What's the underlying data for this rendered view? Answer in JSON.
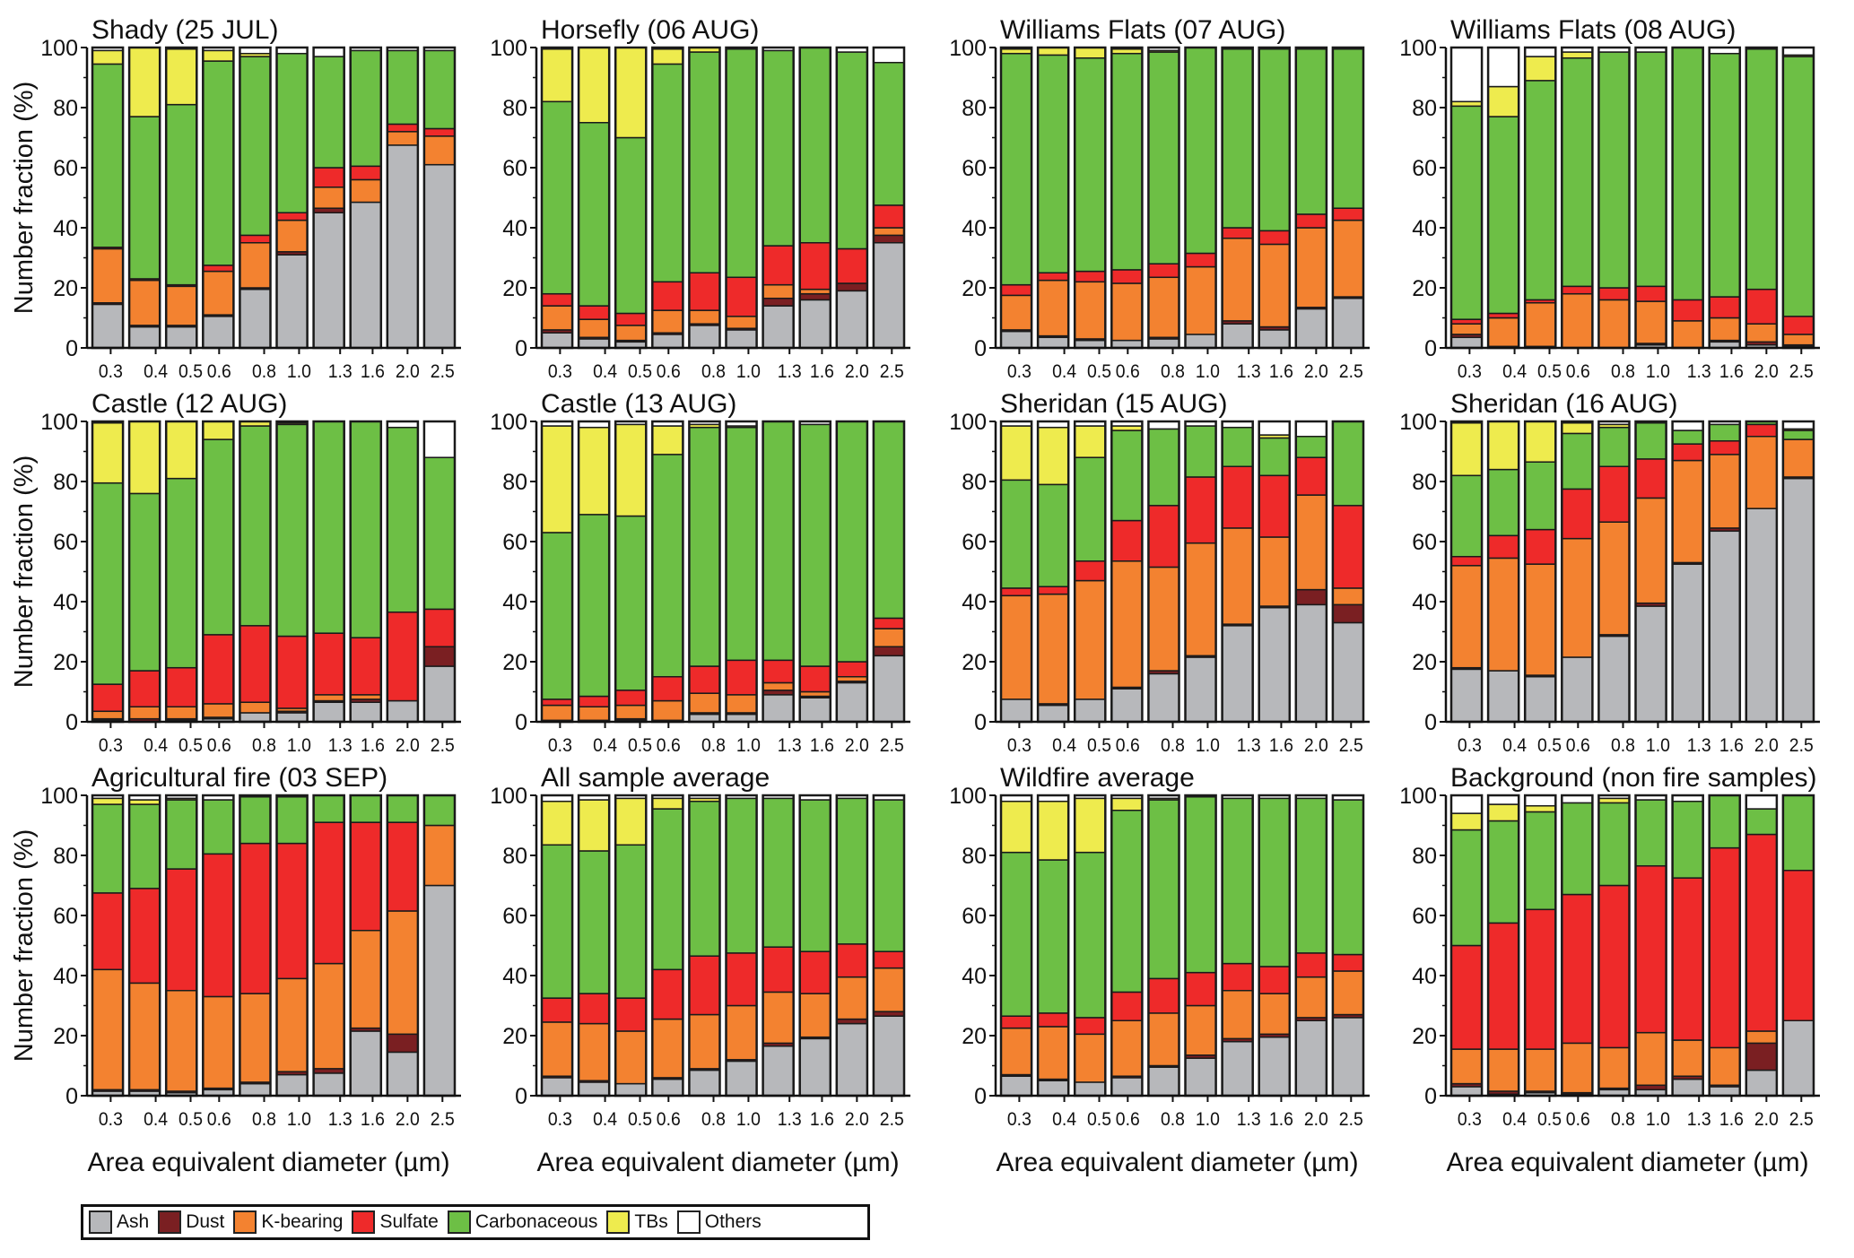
{
  "chart_data": {
    "type": "bar",
    "stacked": true,
    "normalized_percent": true,
    "ylabel": "Number fraction (%)",
    "xlabel": "Area equivalent diameter (µm)",
    "ylim": [
      0,
      100
    ],
    "yticks": [
      0,
      20,
      40,
      60,
      80,
      100
    ],
    "categories": [
      "0.3",
      "0.4",
      "0.5",
      "0.6",
      "0.8",
      "1.0",
      "1.3",
      "1.6",
      "2.0",
      "2.5"
    ],
    "x_tick_scale": "log",
    "legend_position": "bottom-left",
    "legend": [
      {
        "name": "Ash",
        "color": "#b7b8bb"
      },
      {
        "name": "Dust",
        "color": "#7a1f22"
      },
      {
        "name": "K-bearing",
        "color": "#f38230"
      },
      {
        "name": "Sulfate",
        "color": "#ee2a2a"
      },
      {
        "name": "Carbonaceous",
        "color": "#6dbf45"
      },
      {
        "name": "TBs",
        "color": "#eeeb4e"
      },
      {
        "name": "Others",
        "color": "#ffffff"
      }
    ],
    "panels": [
      {
        "title": "Shady  (25 JUL)",
        "bars": [
          [
            14.5,
            0.5,
            18,
            0.5,
            61,
            4.5,
            1
          ],
          [
            7,
            0.5,
            15,
            0.5,
            54,
            23,
            0
          ],
          [
            7,
            0.5,
            13,
            0.5,
            60,
            18.5,
            0.5
          ],
          [
            10.5,
            0.5,
            14.5,
            2,
            68,
            3.5,
            1
          ],
          [
            19.5,
            0.5,
            15,
            2.5,
            59.5,
            1,
            2
          ],
          [
            31,
            1,
            10.5,
            2.5,
            53,
            0,
            2
          ],
          [
            45,
            1.5,
            7,
            6.5,
            37,
            0,
            3
          ],
          [
            48.5,
            0,
            7.5,
            4.5,
            38.5,
            0,
            1
          ],
          [
            67.5,
            0,
            4.5,
            2.5,
            24.5,
            0,
            1
          ],
          [
            61,
            0,
            9.5,
            2.5,
            26,
            0,
            1
          ]
        ]
      },
      {
        "title": "Horsefly  (06 AUG)",
        "bars": [
          [
            5,
            1,
            8,
            4,
            64,
            17.5,
            0.5
          ],
          [
            3,
            0.5,
            6,
            4.5,
            61,
            25,
            0
          ],
          [
            2,
            0.5,
            5,
            4,
            58.5,
            30,
            0
          ],
          [
            4.5,
            0.5,
            7.5,
            9.5,
            72.5,
            5,
            0.5
          ],
          [
            7.5,
            0.5,
            4.5,
            12.5,
            73.5,
            1.5,
            0
          ],
          [
            6,
            0.5,
            4,
            13,
            76,
            0,
            0.5
          ],
          [
            14,
            2.5,
            4.5,
            13,
            65,
            0,
            1
          ],
          [
            16,
            2,
            1.5,
            15.5,
            65,
            0,
            0
          ],
          [
            19,
            2.5,
            0,
            11.5,
            65.5,
            0,
            1.5
          ],
          [
            35,
            2.5,
            2.5,
            7.5,
            47.5,
            0,
            5
          ]
        ]
      },
      {
        "title": "Williams Flats  (07 AUG)",
        "bars": [
          [
            5.5,
            0.5,
            11.5,
            3.5,
            77,
            1.5,
            0.5
          ],
          [
            3.5,
            0.5,
            18.5,
            2.5,
            72.5,
            2.5,
            0
          ],
          [
            2.5,
            0.5,
            19,
            3.5,
            71,
            3.5,
            0
          ],
          [
            2.5,
            0,
            19,
            4.5,
            72,
            1.5,
            0.5
          ],
          [
            3,
            0.5,
            20,
            4.5,
            70.5,
            0.5,
            1
          ],
          [
            4.5,
            0,
            22.5,
            4.5,
            68.5,
            0,
            0
          ],
          [
            8,
            1,
            27.5,
            3.5,
            59.5,
            0,
            0.5
          ],
          [
            6,
            1,
            27.5,
            4.5,
            60.5,
            0,
            0.5
          ],
          [
            13,
            0.5,
            26.5,
            4.5,
            55,
            0,
            0.5
          ],
          [
            16.5,
            0.5,
            25.5,
            4,
            53,
            0,
            0.5
          ]
        ]
      },
      {
        "title": "Williams Flats (08 AUG)",
        "bars": [
          [
            3.5,
            1,
            3.5,
            1.5,
            71,
            1.5,
            18
          ],
          [
            0.5,
            0,
            9.5,
            1.5,
            65.5,
            10,
            13
          ],
          [
            0.5,
            0,
            14.5,
            1,
            73,
            8,
            3
          ],
          [
            0,
            0,
            18,
            2.5,
            76,
            2,
            1.5
          ],
          [
            0,
            0,
            16,
            4,
            78.5,
            0,
            1.5
          ],
          [
            1,
            0.5,
            14,
            5,
            78,
            0,
            1.5
          ],
          [
            0,
            0,
            9,
            7,
            84,
            0,
            0
          ],
          [
            2,
            0.5,
            7.5,
            7,
            81,
            0,
            2
          ],
          [
            1,
            1,
            6,
            11.5,
            80,
            0,
            0.5
          ],
          [
            0.5,
            0.5,
            3.5,
            6,
            86.5,
            0.5,
            2.5
          ]
        ]
      },
      {
        "title": "Castle  (12 AUG)",
        "bars": [
          [
            0.5,
            0.5,
            2.5,
            9,
            67,
            20,
            0.5
          ],
          [
            0,
            1,
            4,
            12,
            59,
            24,
            0
          ],
          [
            0.5,
            0.5,
            4,
            13,
            63,
            19,
            0
          ],
          [
            1,
            0.5,
            4.5,
            23,
            65,
            6,
            0
          ],
          [
            3,
            0,
            3.5,
            25.5,
            66.5,
            1.5,
            0
          ],
          [
            3,
            0.5,
            1,
            24,
            70.5,
            0.5,
            0.5
          ],
          [
            6.5,
            0.5,
            2,
            20.5,
            70.5,
            0,
            0
          ],
          [
            6.5,
            1,
            1.5,
            19,
            72,
            0,
            0
          ],
          [
            7,
            0,
            0,
            29.5,
            61.5,
            0,
            2
          ],
          [
            18.5,
            6.5,
            0,
            12.5,
            50.5,
            0,
            12
          ]
        ]
      },
      {
        "title": "Castle  (13 AUG)",
        "bars": [
          [
            0,
            0.5,
            5,
            2,
            55.5,
            35.5,
            1.5
          ],
          [
            0,
            0.5,
            4.5,
            3.5,
            60.5,
            29,
            2
          ],
          [
            0.5,
            0.5,
            4.5,
            5,
            58,
            30.5,
            1
          ],
          [
            0.5,
            0,
            6.5,
            8,
            74,
            9.5,
            1.5
          ],
          [
            2.5,
            0.5,
            6.5,
            9,
            79.5,
            1,
            1
          ],
          [
            2.5,
            0.5,
            6,
            11.5,
            77.5,
            0.5,
            1.5
          ],
          [
            9,
            1.5,
            2.5,
            7.5,
            79.5,
            0,
            0
          ],
          [
            8,
            0.5,
            1.5,
            8.5,
            80.5,
            0,
            1
          ],
          [
            13,
            0.5,
            1.5,
            5,
            80,
            0,
            0
          ],
          [
            22,
            3,
            6,
            3.5,
            65.5,
            0,
            0
          ]
        ]
      },
      {
        "title": "Sheridan  (15 AUG)",
        "bars": [
          [
            7.5,
            0,
            34.5,
            2.5,
            36,
            18,
            1.5
          ],
          [
            5.5,
            0.5,
            36.5,
            2.5,
            34,
            19,
            2
          ],
          [
            7.5,
            0,
            39.5,
            6.5,
            34.5,
            10.5,
            1.5
          ],
          [
            11,
            0.5,
            42,
            13.5,
            30,
            1.5,
            1.5
          ],
          [
            16,
            1,
            34.5,
            20.5,
            25.5,
            0,
            2.5
          ],
          [
            21.5,
            0.5,
            37.5,
            22,
            17,
            0,
            1.5
          ],
          [
            32,
            0.5,
            32,
            20.5,
            13,
            0,
            2
          ],
          [
            38,
            0.5,
            23,
            20.5,
            12.5,
            1,
            4.5
          ],
          [
            39,
            5,
            31.5,
            12.5,
            7,
            0,
            5
          ],
          [
            33,
            6,
            5.5,
            27.5,
            28,
            0,
            0
          ]
        ]
      },
      {
        "title": "Sheridan  (16 AUG)",
        "bars": [
          [
            17.5,
            0.5,
            34,
            3,
            27,
            17.5,
            0.5
          ],
          [
            17,
            0,
            37.5,
            7.5,
            22,
            16,
            0
          ],
          [
            15,
            0.5,
            37,
            11.5,
            22.5,
            13.5,
            0
          ],
          [
            21.5,
            0,
            39.5,
            16.5,
            18.5,
            3.5,
            0.5
          ],
          [
            28.5,
            0.5,
            37.5,
            18.5,
            13,
            1,
            1
          ],
          [
            38.5,
            1,
            35,
            13,
            12,
            0,
            0.5
          ],
          [
            52.5,
            0.5,
            34,
            5.5,
            4.5,
            0,
            3
          ],
          [
            63.5,
            1,
            24.5,
            4.5,
            5.5,
            0,
            1
          ],
          [
            71,
            0,
            24,
            4,
            1,
            0,
            0
          ],
          [
            81,
            0.5,
            12.5,
            0,
            3,
            0.5,
            2.5
          ]
        ]
      },
      {
        "title": "Agricultural fire  (03 SEP)",
        "bars": [
          [
            1.5,
            0.5,
            40,
            25.5,
            29.5,
            2,
            1
          ],
          [
            1.5,
            0.5,
            35.5,
            31.5,
            28,
            1.5,
            1.5
          ],
          [
            1,
            0.5,
            33.5,
            40.5,
            23,
            0.5,
            1
          ],
          [
            2,
            0.5,
            30.5,
            47.5,
            18,
            0,
            1.5
          ],
          [
            4,
            0.5,
            29.5,
            50,
            15.5,
            0,
            0.5
          ],
          [
            7,
            1,
            31,
            45,
            15.5,
            0,
            0.5
          ],
          [
            7.5,
            1.5,
            35,
            47,
            9,
            0,
            0
          ],
          [
            21.5,
            1,
            32.5,
            36,
            9,
            0,
            0
          ],
          [
            14.5,
            6,
            41,
            29.5,
            9,
            0,
            0
          ],
          [
            70,
            0,
            20,
            0,
            10,
            0,
            0
          ]
        ]
      },
      {
        "title": "All sample average",
        "bars": [
          [
            6,
            0.5,
            18,
            8,
            51,
            14.5,
            2
          ],
          [
            4.5,
            0.5,
            19,
            10,
            47.5,
            17,
            1.5
          ],
          [
            4,
            0,
            17.5,
            11,
            51,
            15.5,
            1
          ],
          [
            5.5,
            0.5,
            19.5,
            16.5,
            53.5,
            3.5,
            1
          ],
          [
            8.5,
            0.5,
            18,
            19.5,
            51.5,
            1,
            1
          ],
          [
            11.5,
            0.5,
            18,
            17.5,
            51.5,
            0,
            1
          ],
          [
            16.5,
            1,
            17,
            15,
            49.5,
            0,
            1
          ],
          [
            19,
            0.5,
            14.5,
            14,
            50.5,
            0,
            1.5
          ],
          [
            24,
            1.5,
            14,
            11,
            48.5,
            0,
            1
          ],
          [
            26.5,
            1.5,
            14.5,
            5.5,
            50.5,
            0,
            1.5
          ]
        ]
      },
      {
        "title": "Wildfire average",
        "bars": [
          [
            6.5,
            0.5,
            15.5,
            4,
            54.5,
            17,
            2
          ],
          [
            5,
            0.5,
            17.5,
            4.5,
            51,
            19.5,
            2
          ],
          [
            4.5,
            0,
            16,
            5.5,
            55,
            18,
            1
          ],
          [
            6,
            0.5,
            18.5,
            9.5,
            60.5,
            4,
            1
          ],
          [
            9.5,
            0.5,
            17.5,
            11.5,
            59.5,
            0.5,
            1
          ],
          [
            12.5,
            1,
            16.5,
            11,
            58.5,
            0,
            0.5
          ],
          [
            18,
            1,
            16,
            9,
            55,
            0,
            1
          ],
          [
            19.5,
            1,
            13.5,
            9,
            56,
            0,
            1
          ],
          [
            25,
            1,
            13.5,
            8,
            51.5,
            0,
            1
          ],
          [
            26,
            1,
            14.5,
            5.5,
            51.5,
            0,
            1.5
          ]
        ]
      },
      {
        "title": "Background (non fire samples)",
        "bars": [
          [
            3,
            1,
            11.5,
            34.5,
            38.5,
            5.5,
            6
          ],
          [
            0.5,
            1,
            14,
            42,
            34,
            5.5,
            3
          ],
          [
            1,
            0.5,
            14,
            46.5,
            32.5,
            2,
            3.5
          ],
          [
            0.5,
            0.5,
            16.5,
            49.5,
            30.5,
            0,
            2.5
          ],
          [
            2,
            0.5,
            13.5,
            54,
            27.5,
            1.5,
            1
          ],
          [
            2,
            1.5,
            17.5,
            55.5,
            22,
            0,
            1.5
          ],
          [
            5.5,
            1,
            12,
            54,
            25.5,
            0,
            2
          ],
          [
            3,
            0.5,
            12.5,
            66.5,
            17.5,
            0,
            0
          ],
          [
            8.5,
            9,
            4,
            65.5,
            8.5,
            0,
            4.5
          ],
          [
            25,
            0,
            0,
            50,
            25,
            0,
            0
          ]
        ]
      }
    ]
  }
}
